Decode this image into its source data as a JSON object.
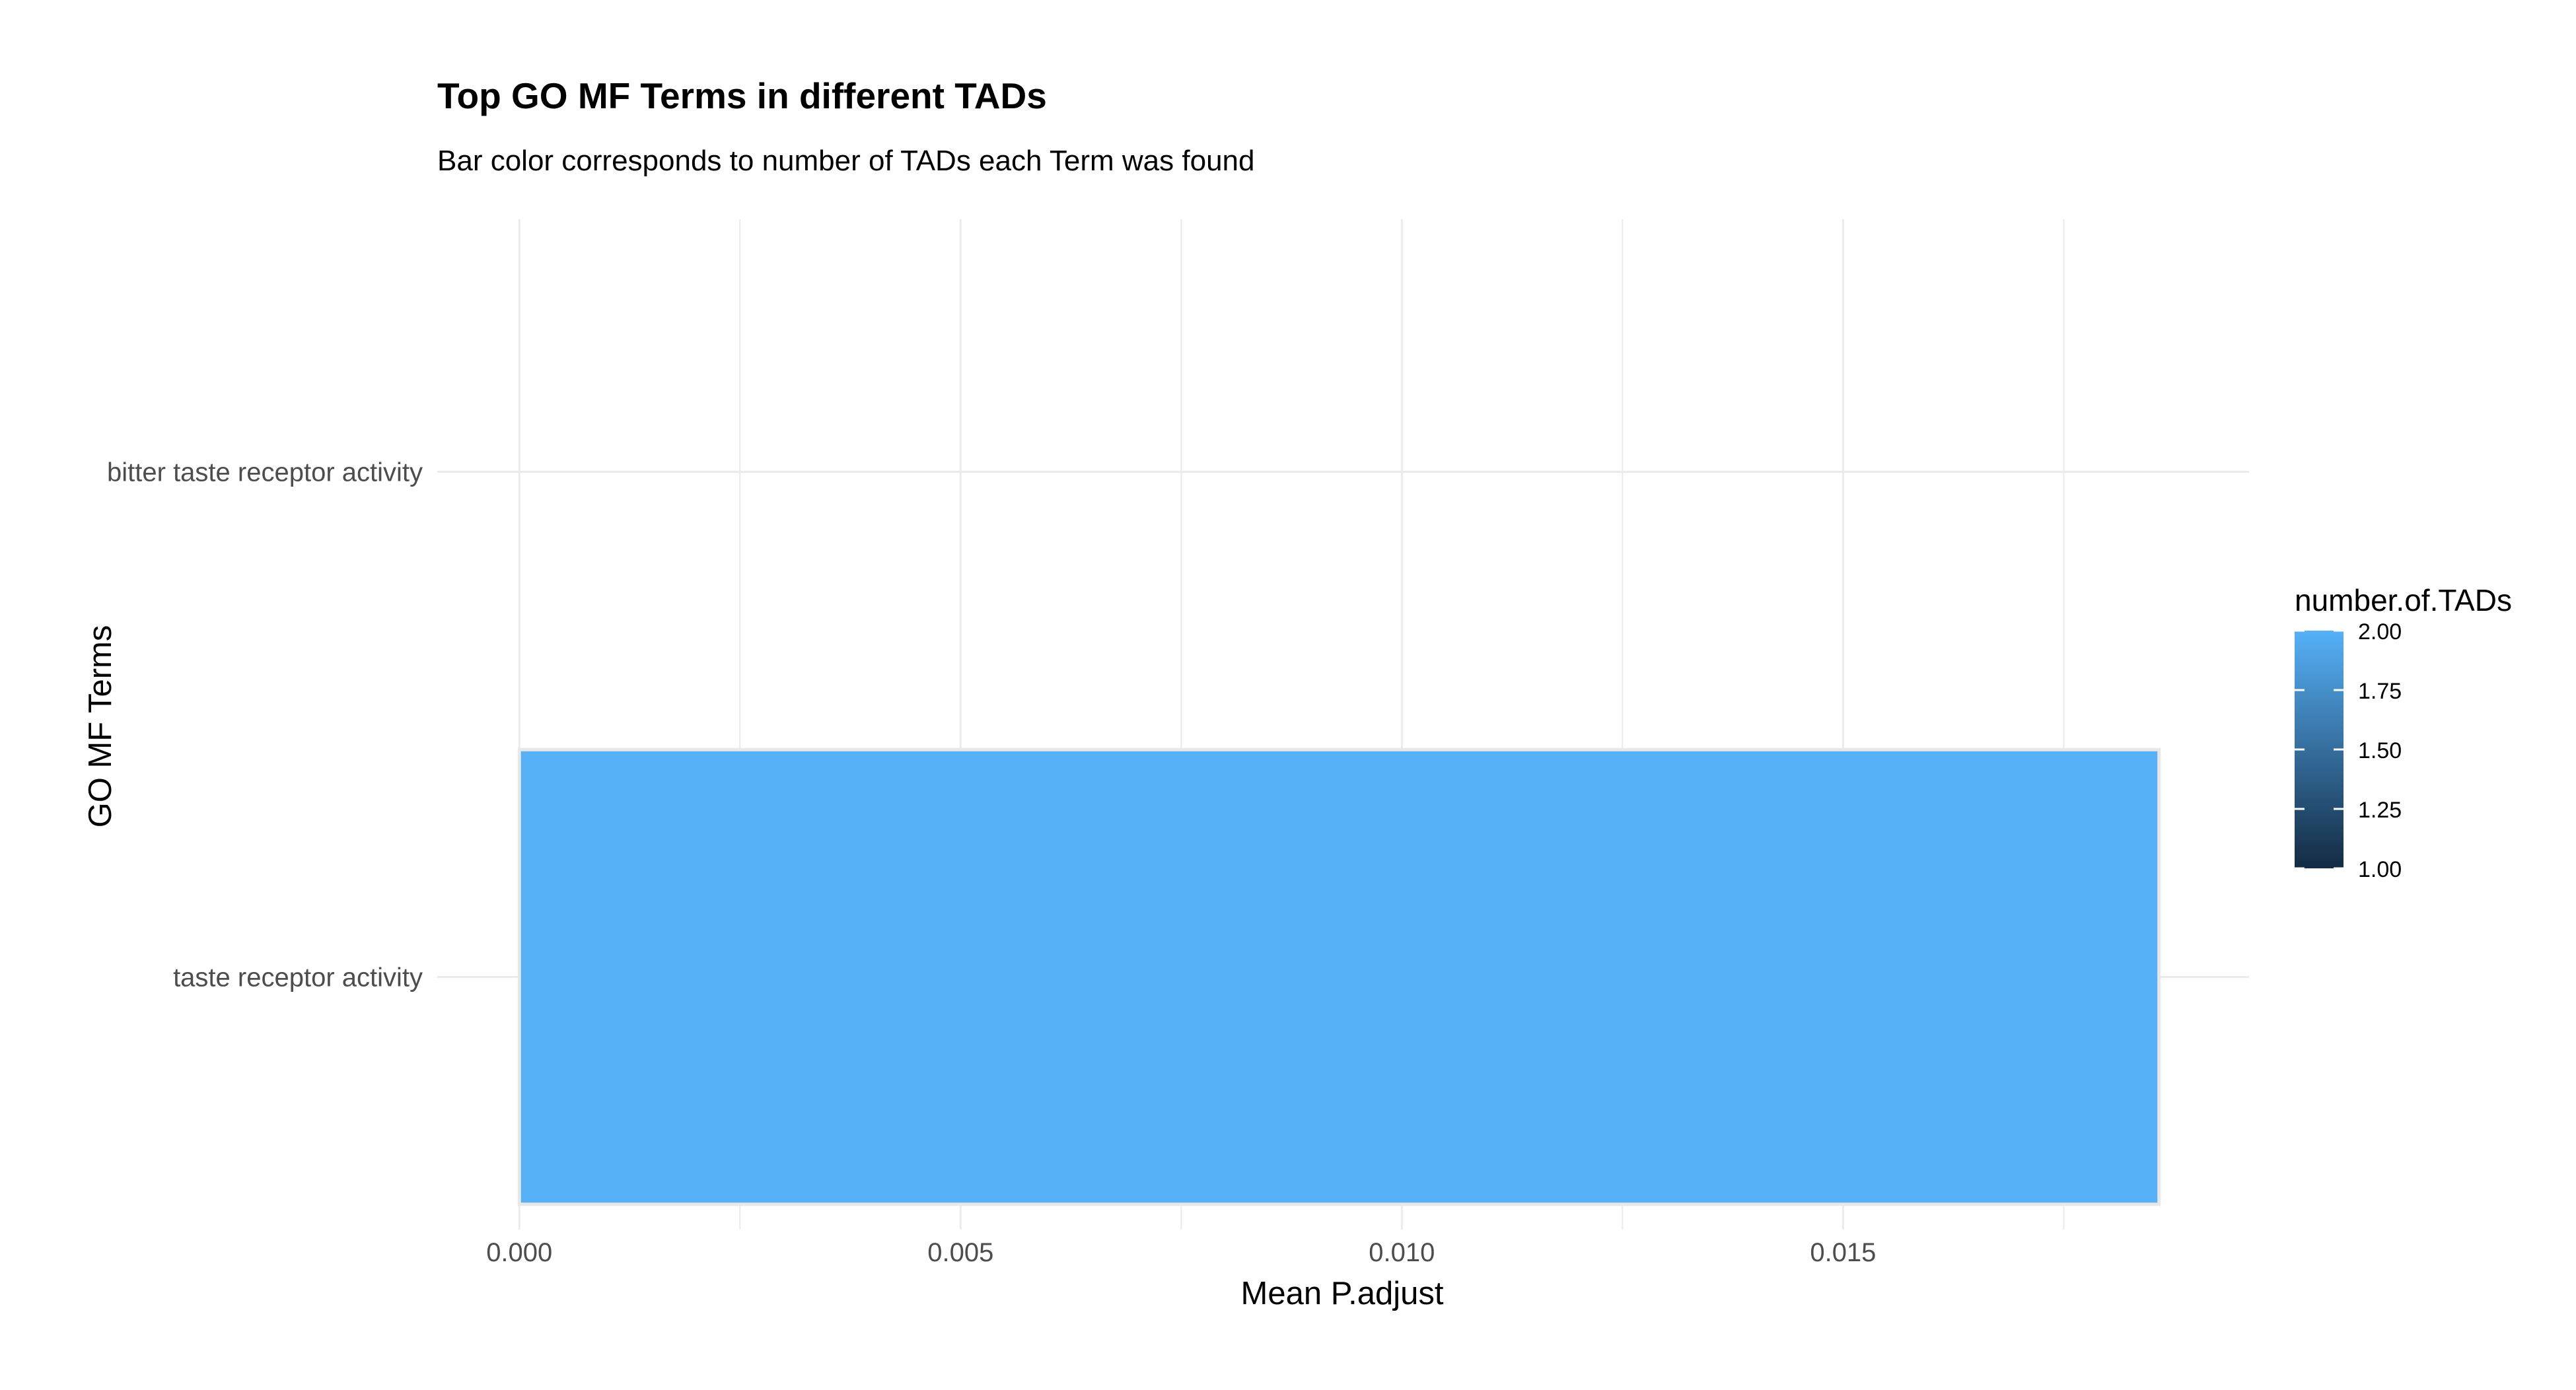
{
  "chart_data": {
    "type": "bar",
    "orientation": "horizontal",
    "title": "Top GO MF Terms in different TADs",
    "subtitle": "Bar color corresponds to number of TADs each Term was found",
    "xlabel": "Mean P.adjust",
    "ylabel": "GO MF Terms",
    "categories": [
      "taste receptor activity",
      "bitter taste receptor activity"
    ],
    "values": [
      0.01858,
      0
    ],
    "color_values": [
      2.0,
      null
    ],
    "xlim": [
      -0.00093,
      0.0196
    ],
    "xticks": [
      0.0,
      0.005,
      0.01,
      0.015
    ],
    "xtick_labels": [
      "0.000",
      "0.005",
      "0.010",
      "0.015"
    ],
    "grid": true,
    "legend": {
      "title": "number.of.TADs",
      "placement": "right",
      "type": "colorbar",
      "range": [
        1.0,
        2.0
      ],
      "ticks": [
        1.0,
        1.25,
        1.5,
        1.75,
        2.0
      ],
      "tick_labels": [
        "1.00",
        "1.25",
        "1.50",
        "1.75",
        "2.00"
      ],
      "low_color": "#132B43",
      "high_color": "#56B1F7"
    },
    "bar_fill": "#56B1F7",
    "bar_outline": "#e8e8e8",
    "grid_color": "#ebebeb"
  }
}
